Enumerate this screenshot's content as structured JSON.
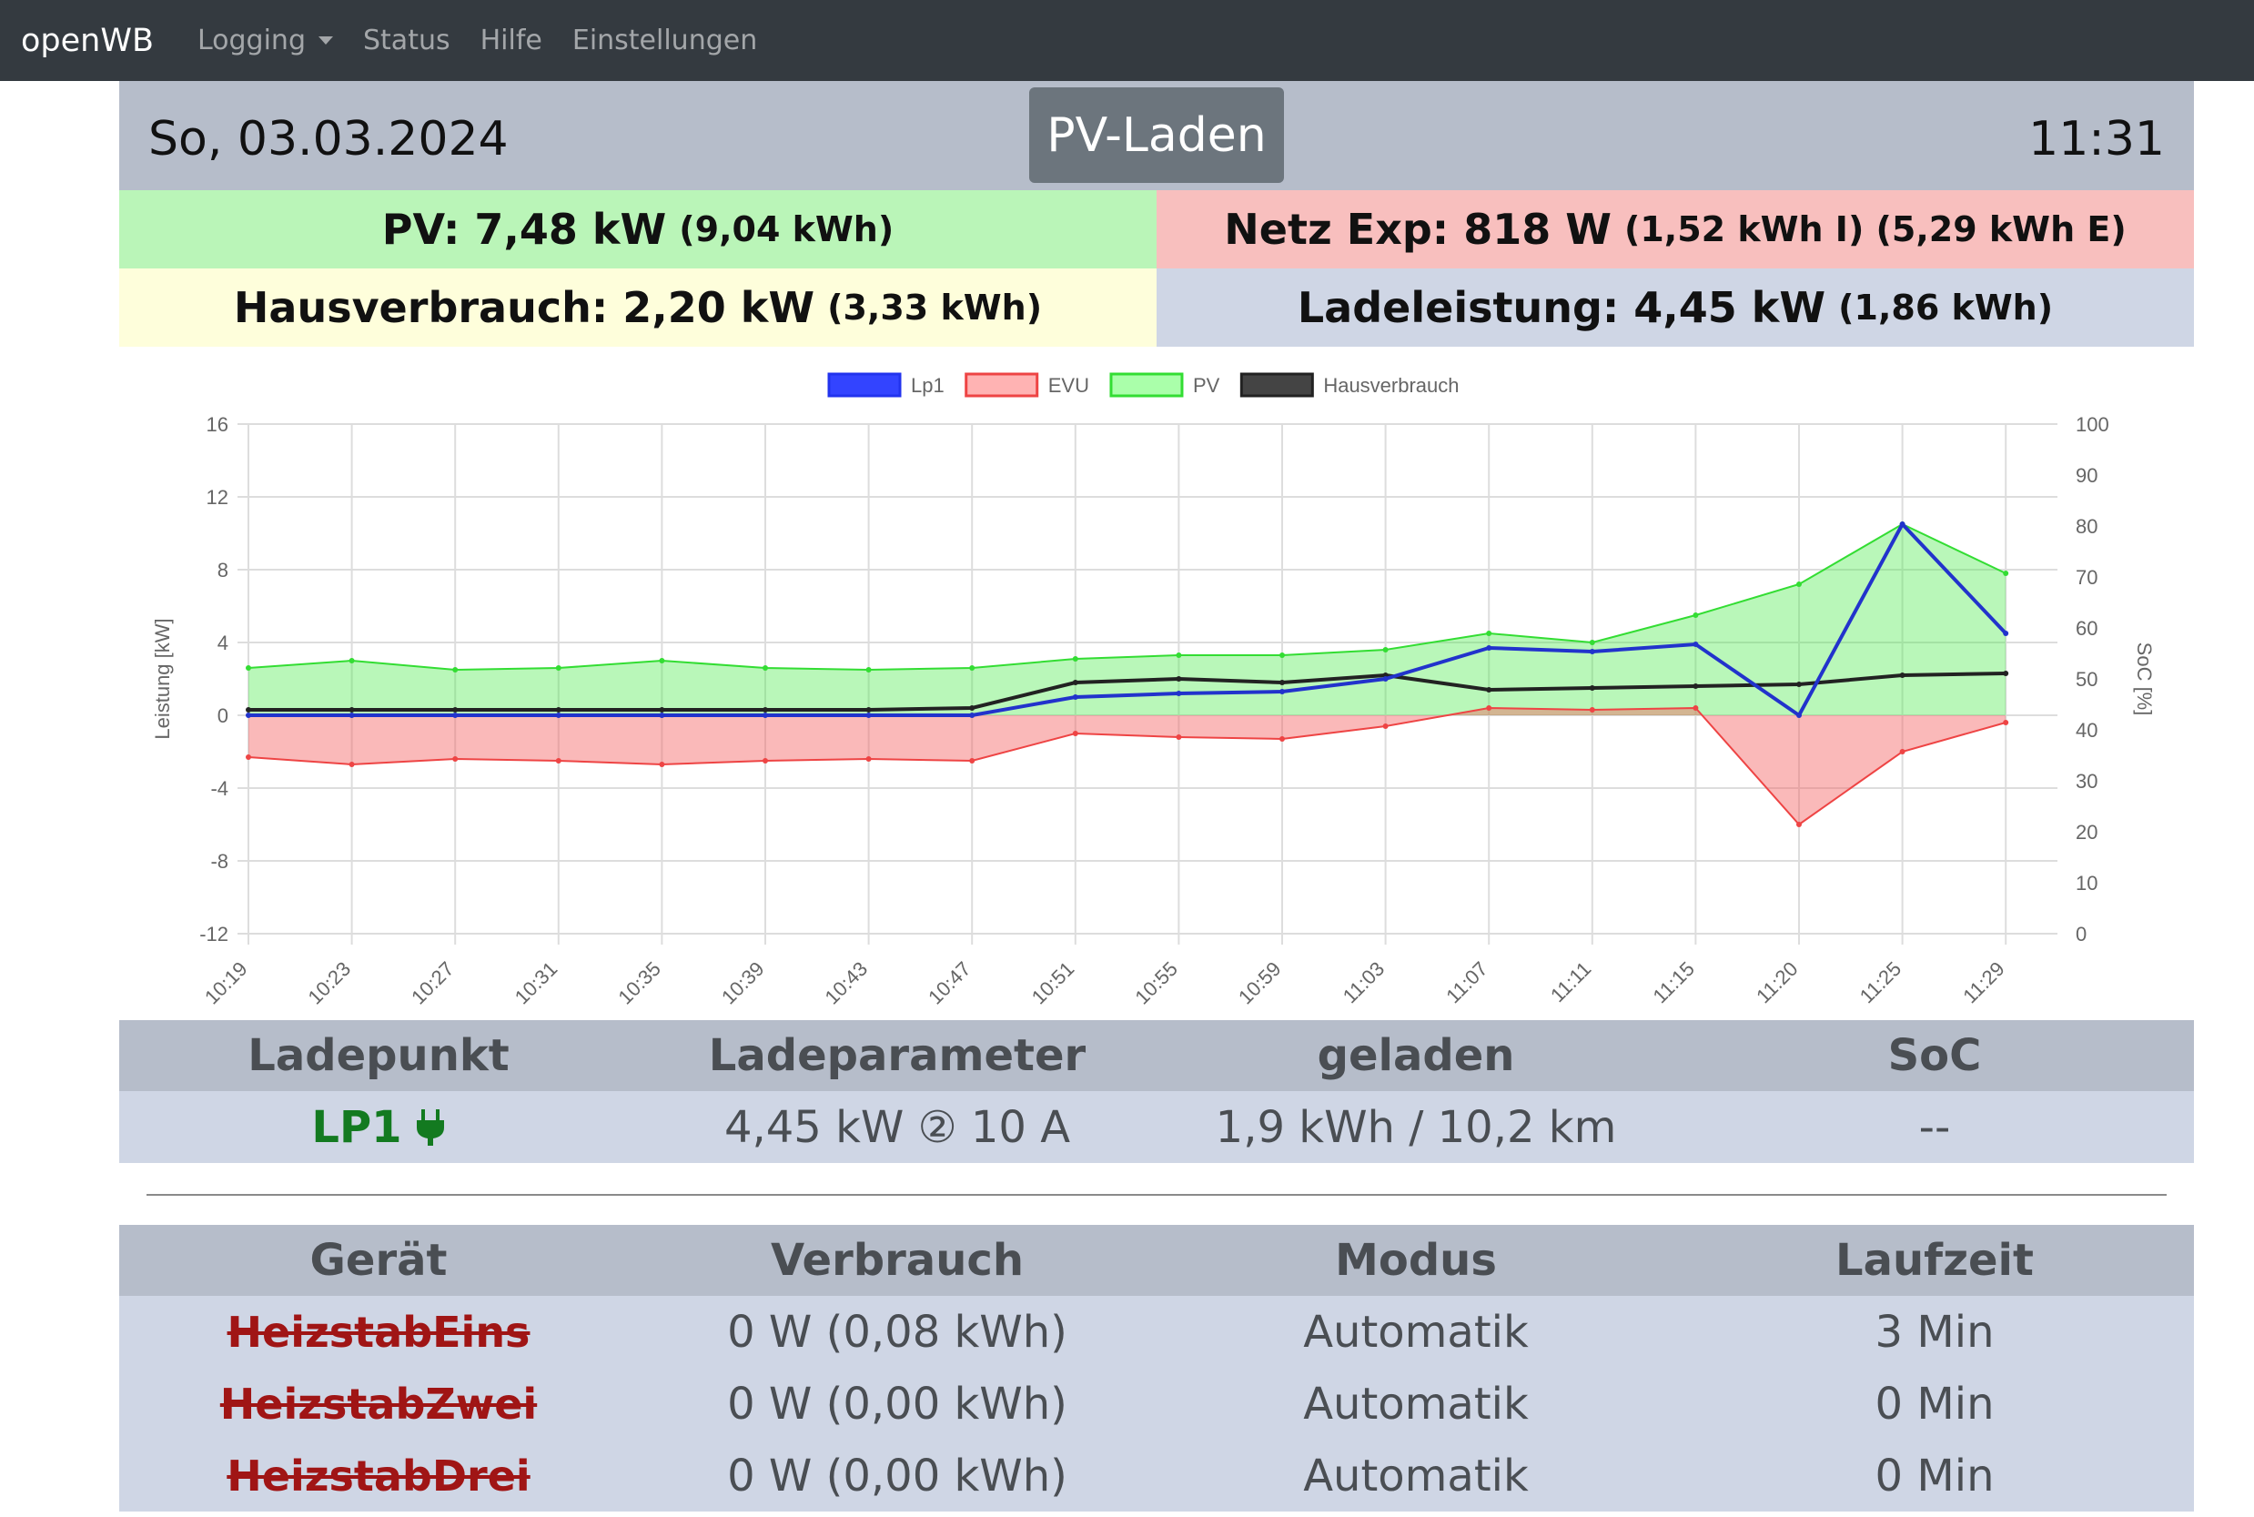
{
  "navbar": {
    "brand": "openWB",
    "items": [
      "Logging",
      "Status",
      "Hilfe",
      "Einstellungen"
    ]
  },
  "header": {
    "date": "So, 03.03.2024",
    "mode": "PV-Laden",
    "time": "11:31"
  },
  "summary": {
    "pv": {
      "label": "PV: 7,48 kW",
      "detail": "(9,04 kWh)"
    },
    "netz": {
      "label": "Netz Exp: 818 W",
      "detail": "(1,52 kWh I) (5,29 kWh E)"
    },
    "haus": {
      "label": "Hausverbrauch: 2,20 kW",
      "detail": "(3,33 kWh)"
    },
    "lade": {
      "label": "Ladeleistung: 4,45 kW",
      "detail": "(1,86 kWh)"
    }
  },
  "chart_data": {
    "type": "line",
    "legend": [
      "Lp1",
      "EVU",
      "PV",
      "Hausverbrauch"
    ],
    "legend_position": "top-center",
    "ylabel": "Leistung [kW]",
    "y2label": "SoC [%]",
    "ylim": [
      -12,
      16
    ],
    "yticks": [
      16,
      12,
      8,
      4,
      0,
      -4,
      -8,
      -12
    ],
    "y2lim": [
      0,
      100
    ],
    "y2ticks": [
      100,
      90,
      80,
      70,
      60,
      50,
      40,
      30,
      20,
      10,
      0
    ],
    "grid": true,
    "x": [
      "10:19",
      "10:23",
      "10:27",
      "10:31",
      "10:35",
      "10:39",
      "10:43",
      "10:47",
      "10:51",
      "10:55",
      "10:59",
      "11:03",
      "11:07",
      "11:11",
      "11:15",
      "11:20",
      "11:25",
      "11:29"
    ],
    "series": [
      {
        "name": "PV",
        "color": "#33dd33",
        "values": [
          2.6,
          3.0,
          2.5,
          2.6,
          3.0,
          2.6,
          2.5,
          2.6,
          3.1,
          3.3,
          3.3,
          3.6,
          4.5,
          4.0,
          5.5,
          7.2,
          10.5,
          7.8
        ]
      },
      {
        "name": "EVU",
        "color": "#ee4444",
        "values": [
          -2.3,
          -2.7,
          -2.4,
          -2.5,
          -2.7,
          -2.5,
          -2.4,
          -2.5,
          -1.0,
          -1.2,
          -1.3,
          -0.6,
          0.4,
          0.3,
          0.4,
          -6.0,
          -2.0,
          -0.4
        ]
      },
      {
        "name": "Hausverbrauch",
        "color": "#222222",
        "values": [
          0.3,
          0.3,
          0.3,
          0.3,
          0.3,
          0.3,
          0.3,
          0.4,
          1.8,
          2.0,
          1.8,
          2.2,
          1.4,
          1.5,
          1.6,
          1.7,
          2.2,
          2.3
        ]
      },
      {
        "name": "Lp1",
        "color": "#2233cc",
        "values": [
          0,
          0,
          0,
          0,
          0,
          0,
          0,
          0,
          1.0,
          1.2,
          1.3,
          2.0,
          3.7,
          3.5,
          3.9,
          0,
          10.5,
          4.5
        ]
      }
    ]
  },
  "ladepunkt_table": {
    "headers": [
      "Ladepunkt",
      "Ladeparameter",
      "geladen",
      "SoC"
    ],
    "rows": [
      {
        "name": "LP1",
        "params": "4,45 kW ② 10 A",
        "charged": "1,9 kWh / 10,2 km",
        "soc": "--",
        "icon": "plug-icon"
      }
    ]
  },
  "geraet_table": {
    "headers": [
      "Gerät",
      "Verbrauch",
      "Modus",
      "Laufzeit"
    ],
    "rows": [
      {
        "name": "HeizstabEins",
        "usage": "0 W (0,08 kWh)",
        "mode": "Automatik",
        "runtime": "3 Min"
      },
      {
        "name": "HeizstabZwei",
        "usage": "0 W (0,00 kWh)",
        "mode": "Automatik",
        "runtime": "0 Min"
      },
      {
        "name": "HeizstabDrei",
        "usage": "0 W (0,00 kWh)",
        "mode": "Automatik",
        "runtime": "0 Min"
      }
    ]
  }
}
